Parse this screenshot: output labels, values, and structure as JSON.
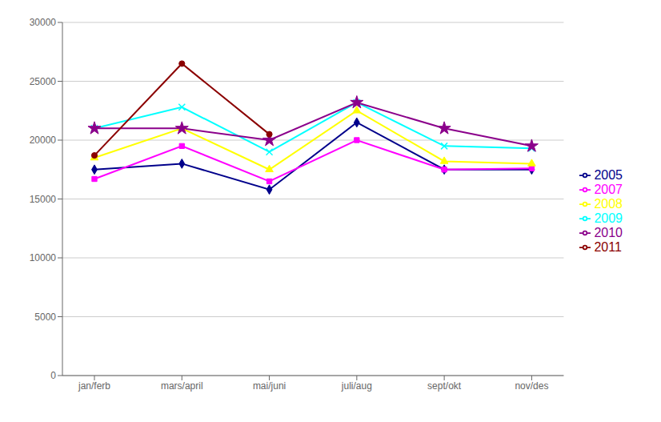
{
  "chart_data": {
    "type": "line",
    "categories": [
      "jan/ferb",
      "mars/april",
      "mai/juni",
      "juli/aug",
      "sept/okt",
      "nov/des"
    ],
    "series": [
      {
        "name": "2005",
        "color": "#00008B",
        "marker": "diamond",
        "values": [
          17500,
          18000,
          15800,
          21500,
          17500,
          17500
        ]
      },
      {
        "name": "2007",
        "color": "#FF00FF",
        "marker": "square",
        "values": [
          16700,
          19500,
          16500,
          20000,
          17500,
          17600
        ]
      },
      {
        "name": "2008",
        "color": "#FFFF00",
        "marker": "triangle",
        "values": [
          18500,
          21000,
          17500,
          22500,
          18200,
          18000
        ]
      },
      {
        "name": "2009",
        "color": "#00FFFF",
        "marker": "x",
        "values": [
          21000,
          22800,
          19000,
          23200,
          19500,
          19300
        ]
      },
      {
        "name": "2010",
        "color": "#8B008B",
        "marker": "star",
        "values": [
          21000,
          21000,
          20000,
          23200,
          21000,
          19500
        ]
      },
      {
        "name": "2011",
        "color": "#8B0000",
        "marker": "circle",
        "values": [
          18700,
          26500,
          20500,
          null,
          null,
          null
        ]
      }
    ],
    "ylim": [
      0,
      30000
    ],
    "yticks": [
      0,
      5000,
      10000,
      15000,
      20000,
      25000,
      30000
    ],
    "grid": true,
    "legend": "right"
  }
}
